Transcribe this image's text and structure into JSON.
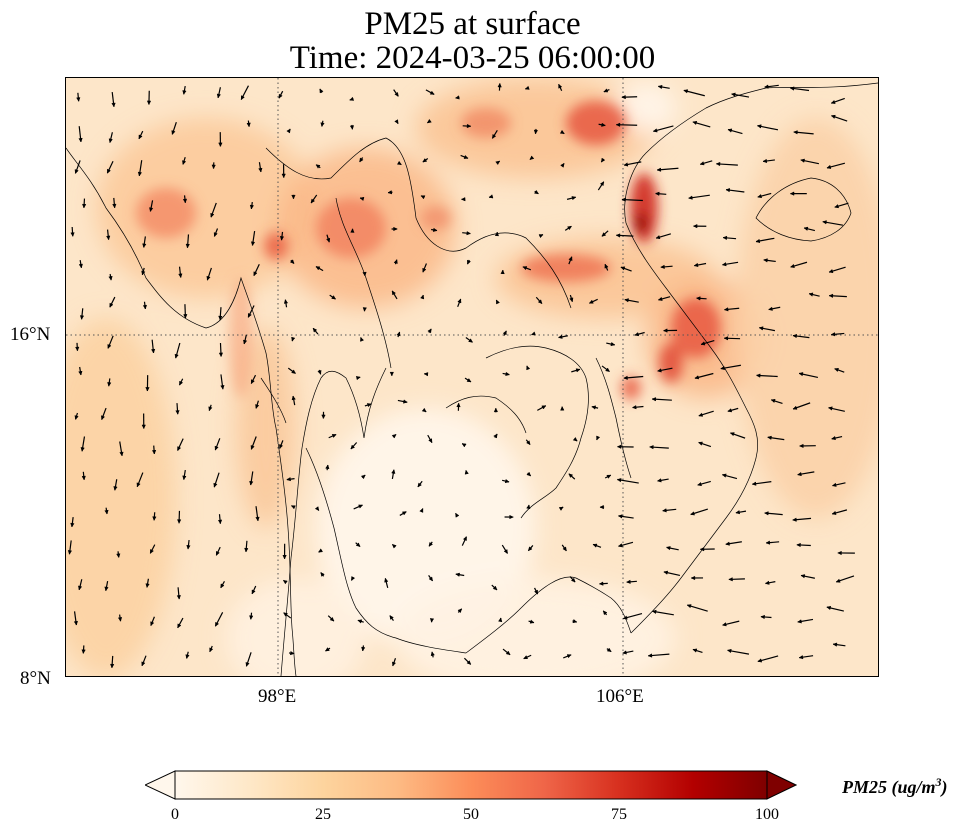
{
  "figure": {
    "title_line1": "PM25 at surface",
    "title_line2": "Time: 2024-03-25 06:00:00"
  },
  "map": {
    "latitude_labels": [
      "16°N",
      "8°N"
    ],
    "longitude_labels": [
      "98°E",
      "106°E"
    ],
    "gridlines": "dotted",
    "coastlines": true,
    "wind_vectors": true
  },
  "colorbar": {
    "label_text": "PM25 (ug/m",
    "label_superscript": "3",
    "label_close": ")",
    "ticks": [
      "0",
      "25",
      "50",
      "75",
      "100"
    ],
    "min": 0,
    "max": 100,
    "extend": "both",
    "colormap": "OrRd",
    "colors": [
      "#fff7ec",
      "#fee8c8",
      "#fdd49e",
      "#fdbb84",
      "#fc8d59",
      "#ef6548",
      "#d7301f",
      "#b30000",
      "#7f0000"
    ]
  }
}
